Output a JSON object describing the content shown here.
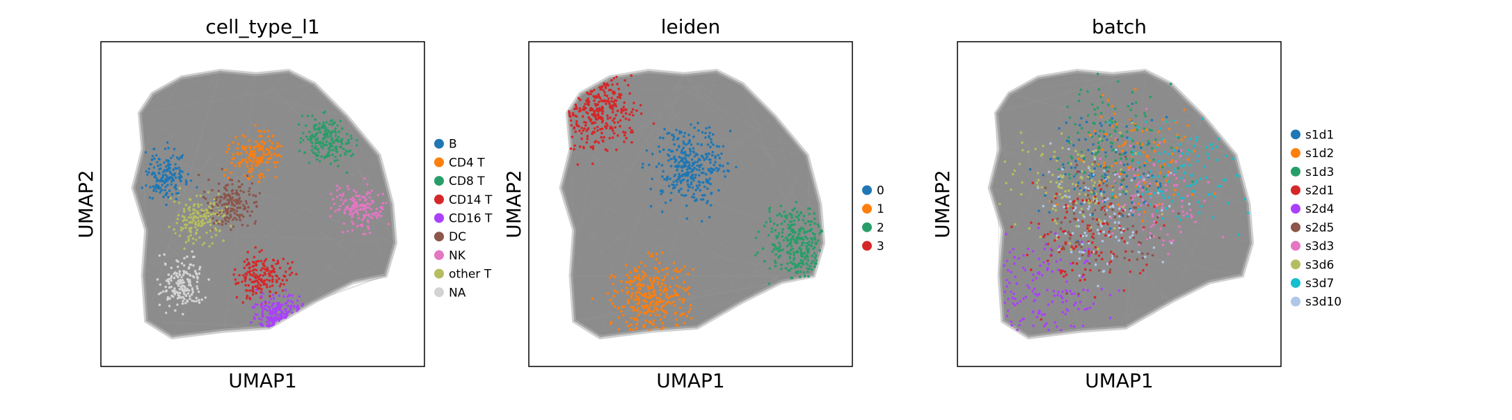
{
  "chart_data": [
    {
      "type": "scatter",
      "title": "cell_type_l1",
      "xlabel": "UMAP1",
      "ylabel": "UMAP2",
      "grid": false,
      "legend_position": "right",
      "background_color": "#808080",
      "categories": [
        {
          "name": "B",
          "color": "#1f77b4"
        },
        {
          "name": "CD4 T",
          "color": "#ff7f0e"
        },
        {
          "name": "CD8 T",
          "color": "#279e68"
        },
        {
          "name": "CD14 T",
          "color": "#d62728"
        },
        {
          "name": "CD16 T",
          "color": "#aa40fc"
        },
        {
          "name": "DC",
          "color": "#8c564b"
        },
        {
          "name": "NK",
          "color": "#e377c2"
        },
        {
          "name": "other T",
          "color": "#b5bd61"
        },
        {
          "name": "NA",
          "color": "#d3d3d3"
        }
      ]
    },
    {
      "type": "scatter",
      "title": "leiden",
      "xlabel": "UMAP1",
      "ylabel": "UMAP2",
      "grid": false,
      "legend_position": "right",
      "background_color": "#808080",
      "categories": [
        {
          "name": "0",
          "color": "#1f77b4"
        },
        {
          "name": "1",
          "color": "#ff7f0e"
        },
        {
          "name": "2",
          "color": "#279e68"
        },
        {
          "name": "3",
          "color": "#d62728"
        }
      ]
    },
    {
      "type": "scatter",
      "title": "batch",
      "xlabel": "UMAP1",
      "ylabel": "UMAP2",
      "grid": false,
      "legend_position": "right",
      "background_color": "#808080",
      "categories": [
        {
          "name": "s1d1",
          "color": "#1f77b4"
        },
        {
          "name": "s1d2",
          "color": "#ff7f0e"
        },
        {
          "name": "s1d3",
          "color": "#279e68"
        },
        {
          "name": "s2d1",
          "color": "#d62728"
        },
        {
          "name": "s2d4",
          "color": "#aa40fc"
        },
        {
          "name": "s2d5",
          "color": "#8c564b"
        },
        {
          "name": "s3d3",
          "color": "#e377c2"
        },
        {
          "name": "s3d6",
          "color": "#b5bd61"
        },
        {
          "name": "s3d7",
          "color": "#17becf"
        },
        {
          "name": "s3d10",
          "color": "#aec7e8"
        }
      ]
    }
  ]
}
